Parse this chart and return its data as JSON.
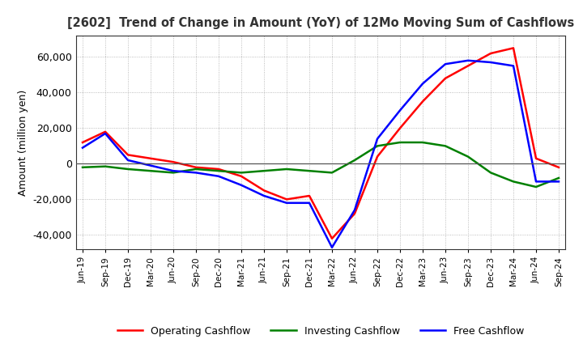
{
  "title": "[2602]  Trend of Change in Amount (YoY) of 12Mo Moving Sum of Cashflows",
  "ylabel": "Amount (million yen)",
  "title_color": "#333333",
  "background_color": "#ffffff",
  "x_labels": [
    "Jun-19",
    "Sep-19",
    "Dec-19",
    "Mar-20",
    "Jun-20",
    "Sep-20",
    "Dec-20",
    "Mar-21",
    "Jun-21",
    "Sep-21",
    "Dec-21",
    "Mar-22",
    "Jun-22",
    "Sep-22",
    "Dec-22",
    "Mar-23",
    "Jun-23",
    "Sep-23",
    "Dec-23",
    "Mar-24",
    "Jun-24",
    "Sep-24"
  ],
  "operating_cashflow": [
    12000,
    18000,
    5000,
    3000,
    1000,
    -2000,
    -3000,
    -7000,
    -15000,
    -20000,
    -18000,
    -42000,
    -28000,
    4000,
    20000,
    35000,
    48000,
    55000,
    62000,
    65000,
    3000,
    -2000
  ],
  "investing_cashflow": [
    -2000,
    -1500,
    -3000,
    -4000,
    -5000,
    -3000,
    -4000,
    -5000,
    -4000,
    -3000,
    -4000,
    -5000,
    2000,
    10000,
    12000,
    12000,
    10000,
    4000,
    -5000,
    -10000,
    -13000,
    -8000
  ],
  "free_cashflow": [
    9000,
    17000,
    2000,
    -1000,
    -4000,
    -5000,
    -7000,
    -12000,
    -18000,
    -22000,
    -22000,
    -47000,
    -26000,
    14000,
    30000,
    45000,
    56000,
    58000,
    57000,
    55000,
    -10000,
    -10000
  ],
  "op_color": "#ff0000",
  "inv_color": "#008000",
  "free_color": "#0000ff",
  "ylim": [
    -48000,
    72000
  ],
  "yticks": [
    -40000,
    -20000,
    0,
    20000,
    40000,
    60000
  ],
  "grid_color": "#aaaaaa",
  "grid_style": "dotted"
}
